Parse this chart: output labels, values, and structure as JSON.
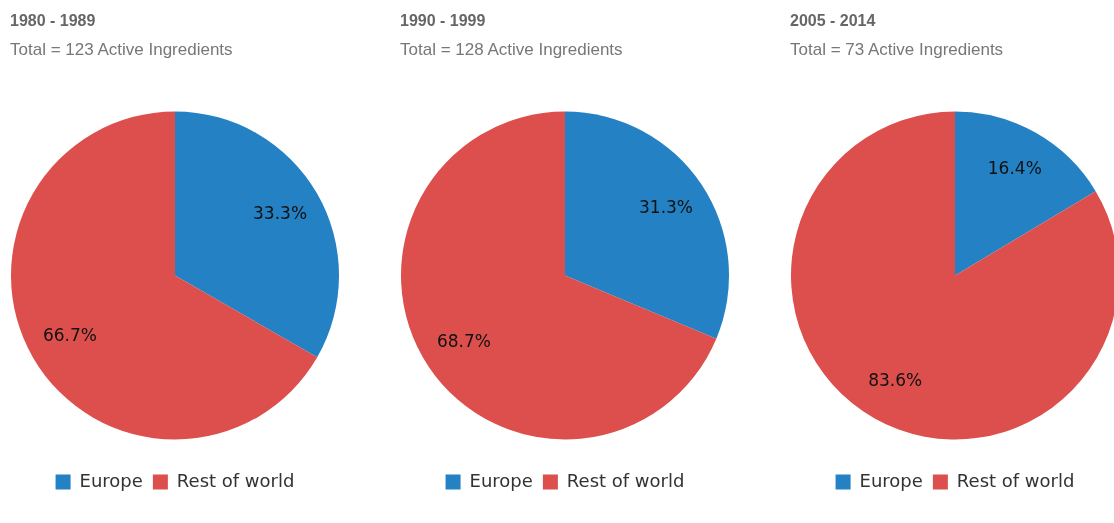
{
  "chart_data": [
    {
      "type": "pie",
      "title": "1980 - 1989",
      "subtitle": "Total = 123 Active Ingredients",
      "categories": [
        "Europe",
        "Rest of world"
      ],
      "values": [
        33.3,
        66.7
      ],
      "value_labels": [
        "33.3%",
        "66.7%"
      ],
      "colors": [
        "#2381c4",
        "#dc4f4c"
      ],
      "legend": "bottom"
    },
    {
      "type": "pie",
      "title": "1990 - 1999",
      "subtitle": "Total = 128 Active Ingredients",
      "categories": [
        "Europe",
        "Rest of world"
      ],
      "values": [
        31.3,
        68.7
      ],
      "value_labels": [
        "31.3%",
        "68.7%"
      ],
      "colors": [
        "#2381c4",
        "#dc4f4c"
      ],
      "legend": "bottom"
    },
    {
      "type": "pie",
      "title": "2005 - 2014",
      "subtitle": "Total = 73 Active Ingredients",
      "categories": [
        "Europe",
        "Rest of world"
      ],
      "values": [
        16.4,
        83.6
      ],
      "value_labels": [
        "16.4%",
        "83.6%"
      ],
      "colors": [
        "#2381c4",
        "#dc4f4c"
      ],
      "legend": "bottom"
    }
  ]
}
